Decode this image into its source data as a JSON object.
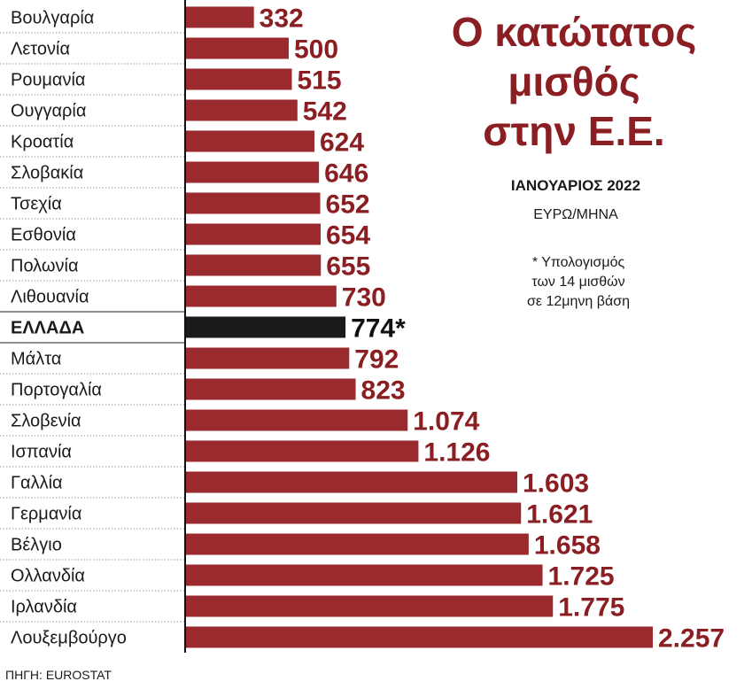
{
  "title_lines": [
    "Ο κατώτατος",
    "μισθός",
    "στην Ε.Ε."
  ],
  "subtitle": "ΙΑΝΟΥΑΡΙΟΣ 2022",
  "unit": "ΕΥΡΩ/ΜΗΝΑ",
  "note_lines": [
    "* Υπολογισμός",
    "των 14 μισθών",
    "σε 12μηνη βάση"
  ],
  "source": "ΠΗΓΗ: EUROSTAT",
  "colors": {
    "bar": "#9b2a2e",
    "highlight": "#1a1a1a",
    "value_text": "#8b1e22"
  },
  "chart_data": {
    "type": "bar",
    "orientation": "horizontal",
    "categories": [
      "Βουλγαρία",
      "Λετονία",
      "Ρουμανία",
      "Ουγγαρία",
      "Κροατία",
      "Σλοβακία",
      "Τσεχία",
      "Εσθονία",
      "Πολωνία",
      "Λιθουανία",
      "ΕΛΛΑΔΑ",
      "Μάλτα",
      "Πορτογαλία",
      "Σλοβενία",
      "Ισπανία",
      "Γαλλία",
      "Γερμανία",
      "Βέλγιο",
      "Ολλανδία",
      "Ιρλανδία",
      "Λουξεμβούργο"
    ],
    "values": [
      332,
      500,
      515,
      542,
      624,
      646,
      652,
      654,
      655,
      730,
      774,
      792,
      823,
      1074,
      1126,
      1603,
      1621,
      1658,
      1725,
      1775,
      2257
    ],
    "value_labels": [
      "332",
      "500",
      "515",
      "542",
      "624",
      "646",
      "652",
      "654",
      "655",
      "730",
      "774*",
      "792",
      "823",
      "1.074",
      "1.126",
      "1.603",
      "1.621",
      "1.658",
      "1.725",
      "1.775",
      "2.257"
    ],
    "highlight_category": "ΕΛΛΑΔΑ",
    "xlim": [
      0,
      2257
    ],
    "grid": false,
    "legend": "none"
  }
}
